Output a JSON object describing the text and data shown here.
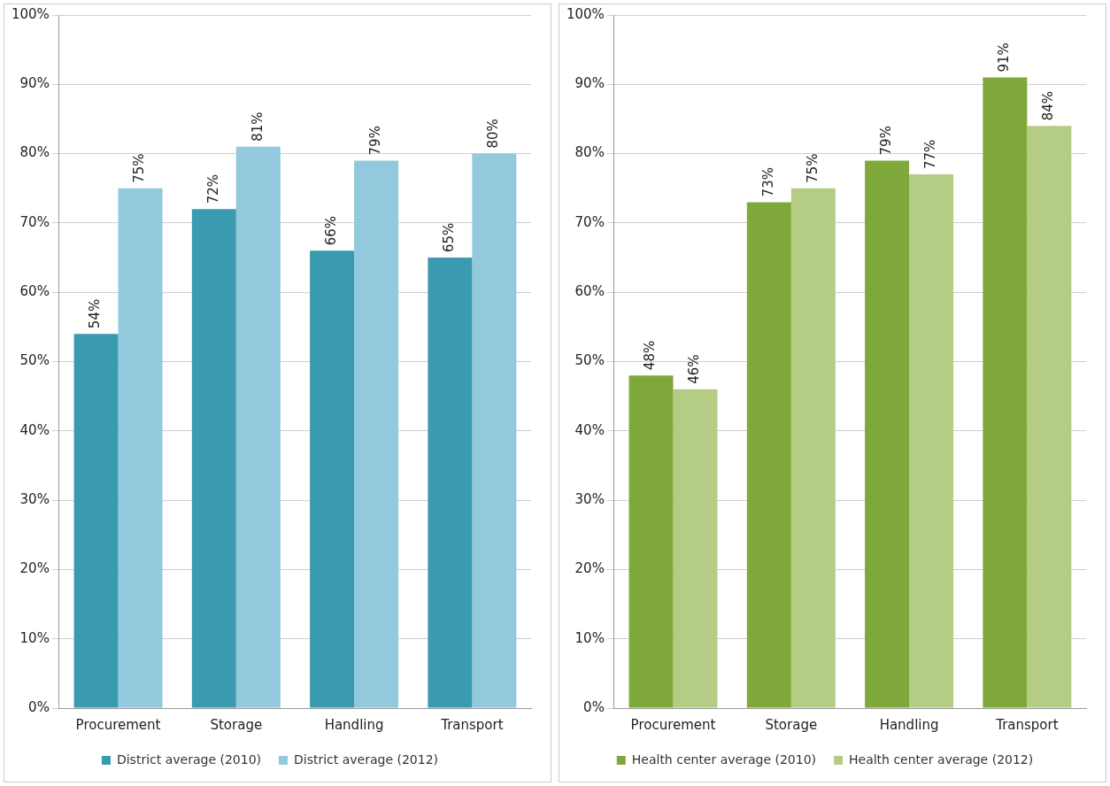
{
  "chart_data": [
    {
      "type": "bar",
      "categories": [
        "Procurement",
        "Storage",
        "Handling",
        "Transport"
      ],
      "series": [
        {
          "name": "District average (2010)",
          "color": "#3a9ab0",
          "values": [
            54,
            72,
            66,
            65
          ],
          "value_labels": [
            "54%",
            "72%",
            "66%",
            "65%"
          ]
        },
        {
          "name": "District average (2012)",
          "color": "#92c9dc",
          "values": [
            75,
            81,
            79,
            80
          ],
          "value_labels": [
            "75%",
            "81%",
            "79%",
            "80%"
          ]
        }
      ],
      "ylim": [
        0,
        100
      ],
      "yticks": [
        {
          "value": 0,
          "label": "0%"
        },
        {
          "value": 10,
          "label": "10%"
        },
        {
          "value": 20,
          "label": "20%"
        },
        {
          "value": 30,
          "label": "30%"
        },
        {
          "value": 40,
          "label": "40%"
        },
        {
          "value": 50,
          "label": "50%"
        },
        {
          "value": 60,
          "label": "60%"
        },
        {
          "value": 70,
          "label": "70%"
        },
        {
          "value": 80,
          "label": "80%"
        },
        {
          "value": 90,
          "label": "90%"
        },
        {
          "value": 100,
          "label": "100%"
        }
      ],
      "grid": "y",
      "legend": "bottom"
    },
    {
      "type": "bar",
      "categories": [
        "Procurement",
        "Storage",
        "Handling",
        "Transport"
      ],
      "series": [
        {
          "name": "Health center average (2010)",
          "color": "#7fa83a",
          "values": [
            48,
            73,
            79,
            91
          ],
          "value_labels": [
            "48%",
            "73%",
            "79%",
            "91%"
          ]
        },
        {
          "name": "Health center average (2012)",
          "color": "#b4cc84",
          "values": [
            46,
            75,
            77,
            84
          ],
          "value_labels": [
            "46%",
            "75%",
            "77%",
            "84%"
          ]
        }
      ],
      "ylim": [
        0,
        100
      ],
      "yticks": [
        {
          "value": 0,
          "label": "0%"
        },
        {
          "value": 10,
          "label": "10%"
        },
        {
          "value": 20,
          "label": "20%"
        },
        {
          "value": 30,
          "label": "30%"
        },
        {
          "value": 40,
          "label": "40%"
        },
        {
          "value": 50,
          "label": "50%"
        },
        {
          "value": 60,
          "label": "60%"
        },
        {
          "value": 70,
          "label": "70%"
        },
        {
          "value": 80,
          "label": "80%"
        },
        {
          "value": 90,
          "label": "90%"
        },
        {
          "value": 100,
          "label": "100%"
        }
      ],
      "grid": "y",
      "legend": "bottom"
    }
  ]
}
